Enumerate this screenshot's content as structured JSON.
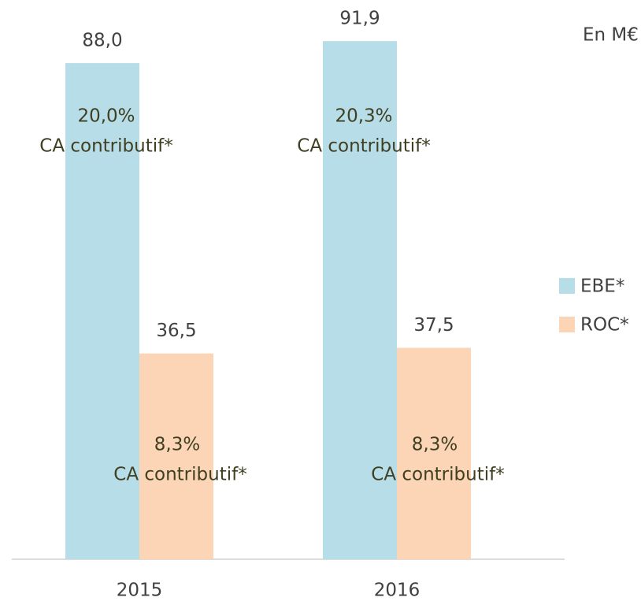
{
  "chart_data": {
    "type": "bar",
    "unit_label": "En M€",
    "categories": [
      "2015",
      "2016"
    ],
    "series": [
      {
        "name": "EBE*",
        "color": "#b7dde8",
        "values": [
          88.0,
          91.9
        ],
        "value_labels": [
          "88,0",
          "91,9"
        ],
        "annotations": [
          [
            "20,0%",
            "CA contributif*"
          ],
          [
            "20,3%",
            "CA contributif*"
          ]
        ]
      },
      {
        "name": "ROC*",
        "color": "#fbd5b5",
        "values": [
          36.5,
          37.5
        ],
        "value_labels": [
          "36,5",
          "37,5"
        ],
        "annotations": [
          [
            "8,3%",
            "CA contributif*"
          ],
          [
            "8,3%",
            "CA contributif*"
          ]
        ]
      }
    ],
    "ylim": [
      0,
      95
    ],
    "legend": "right"
  }
}
